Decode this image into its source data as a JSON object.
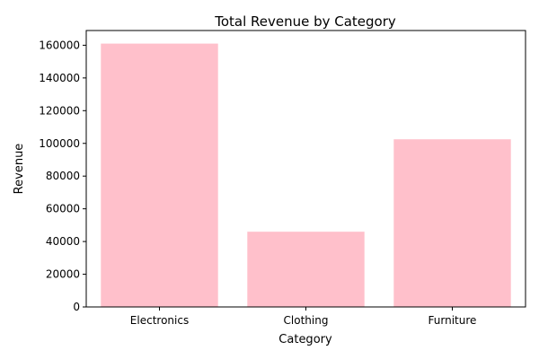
{
  "chart_data": {
    "type": "bar",
    "title": "Total Revenue by Category",
    "xlabel": "Category",
    "ylabel": "Revenue",
    "categories": [
      "Electronics",
      "Clothing",
      "Furniture"
    ],
    "values": [
      161000,
      46000,
      102500
    ],
    "ylim": [
      0,
      169000
    ],
    "yticks": [
      0,
      20000,
      40000,
      60000,
      80000,
      100000,
      120000,
      140000,
      160000
    ],
    "bar_color": "#ffc0cb",
    "grid": false,
    "legend": "none"
  }
}
